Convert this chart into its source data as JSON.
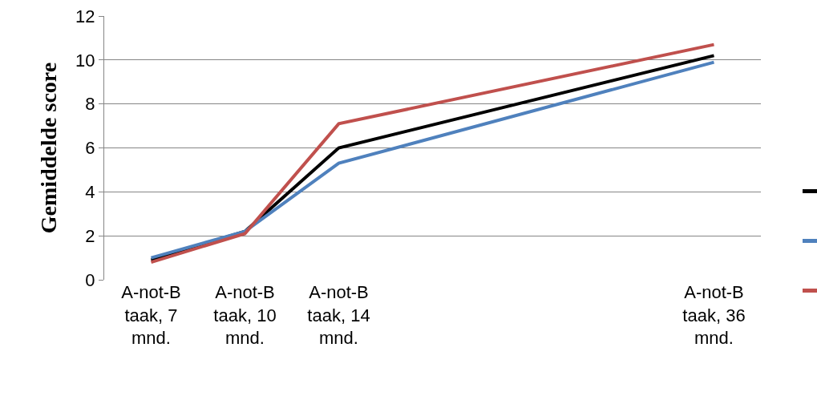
{
  "chart_data": {
    "type": "line",
    "ylabel": "Gemiddelde score",
    "categories": [
      "A-not-B taak, 7 mnd.",
      "A-not-B taak, 10 mnd.",
      "A-not-B taak, 14 mnd.",
      null,
      null,
      null,
      "A-not-B taak, 36 mnd."
    ],
    "series": [
      {
        "color": "#000000",
        "values": [
          0.9,
          2.2,
          6.0,
          null,
          null,
          null,
          10.2
        ]
      },
      {
        "color": "#4f81bd",
        "values": [
          1.0,
          2.2,
          5.3,
          null,
          null,
          null,
          9.9
        ]
      },
      {
        "color": "#c0504d",
        "values": [
          0.8,
          2.1,
          7.1,
          null,
          null,
          null,
          10.7
        ]
      }
    ],
    "ylim": [
      0,
      12
    ],
    "yticks": [
      0,
      2,
      4,
      6,
      8,
      10,
      12
    ],
    "grid": "y",
    "marker": "none",
    "line_style": "solid"
  }
}
